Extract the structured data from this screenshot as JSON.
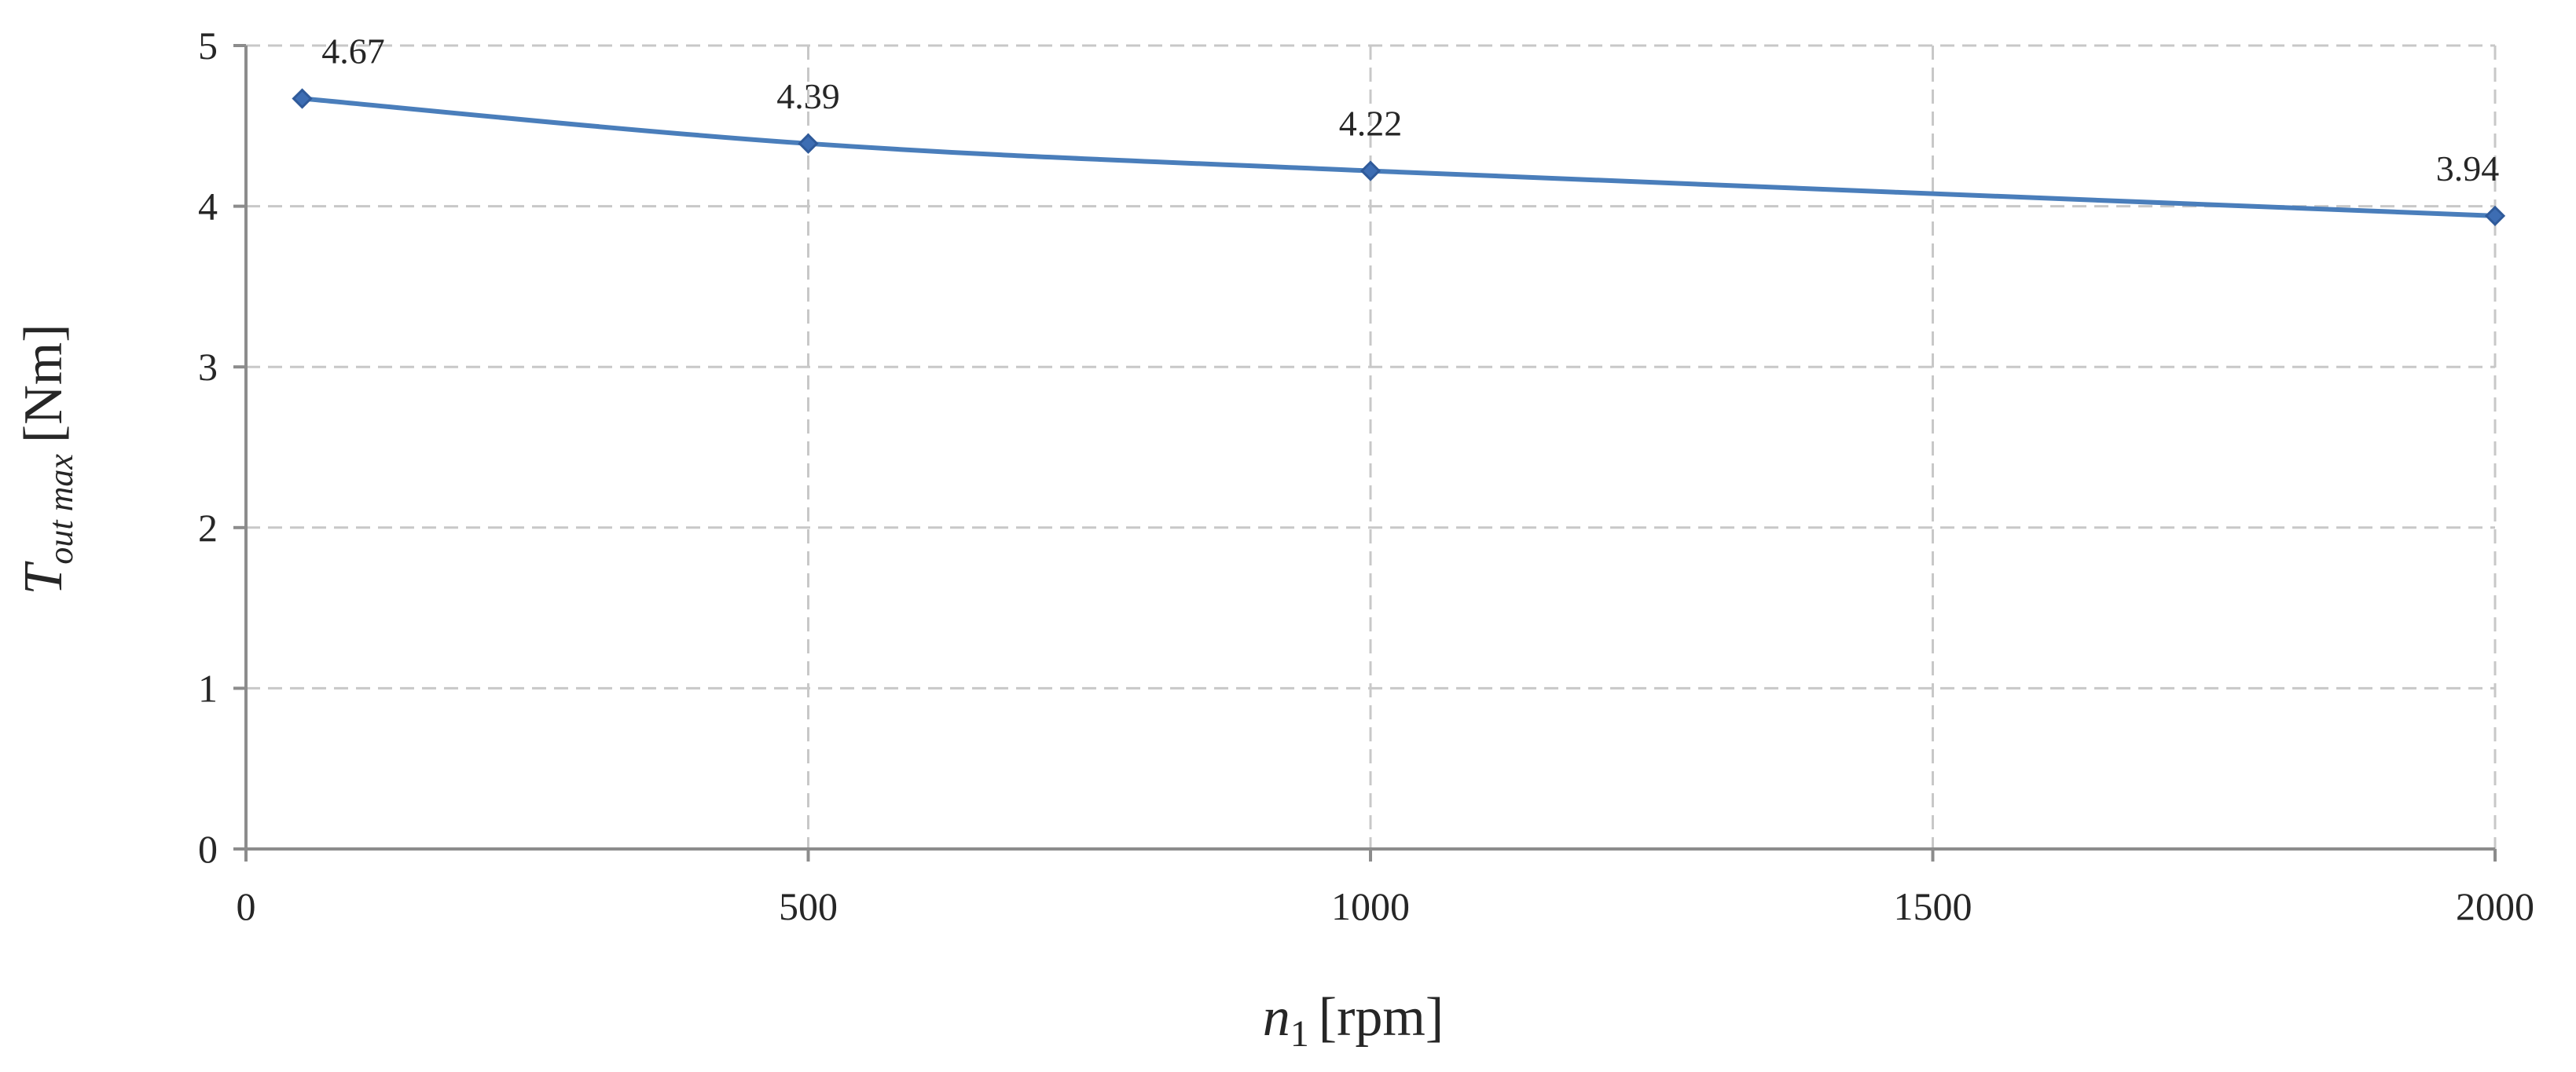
{
  "chart_data": {
    "type": "line",
    "title": "",
    "xlabel": {
      "main": "n",
      "sub": "1",
      "unit": "[rpm]"
    },
    "ylabel": {
      "main": "T",
      "sub": "out max",
      "unit": "[Nm]"
    },
    "xlim": [
      0,
      2000
    ],
    "ylim": [
      0,
      5
    ],
    "xticks": [
      "0",
      "500",
      "1000",
      "1500",
      "2000"
    ],
    "yticks": [
      "0",
      "1",
      "2",
      "3",
      "4",
      "5"
    ],
    "grid": true,
    "legend": "none",
    "series": [
      {
        "color": "#4a7ebb",
        "marker_color": "#3d6db3",
        "points": [
          {
            "x": 50,
            "y": 4.67,
            "label": "4.67"
          },
          {
            "x": 500,
            "y": 4.39,
            "label": "4.39"
          },
          {
            "x": 1000,
            "y": 4.22,
            "label": "4.22"
          },
          {
            "x": 2000,
            "y": 3.94,
            "label": "3.94"
          }
        ]
      }
    ]
  }
}
